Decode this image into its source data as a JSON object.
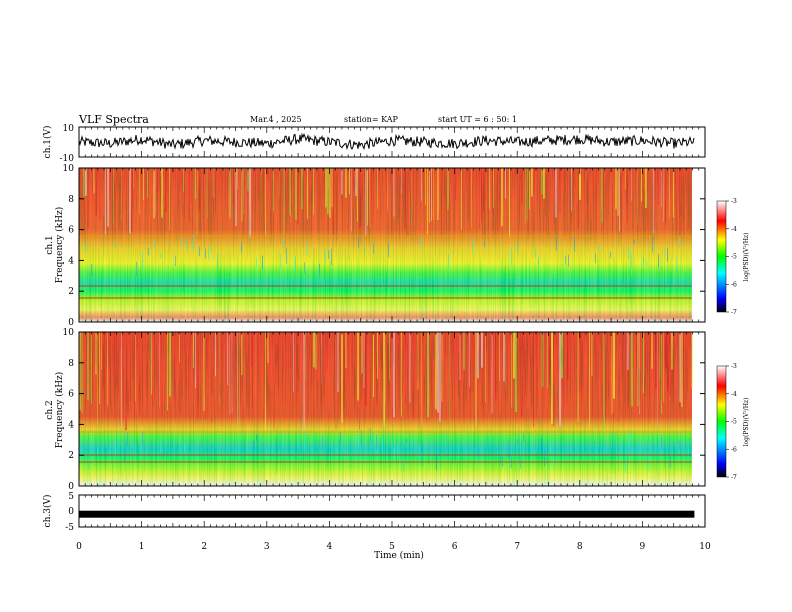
{
  "header": {
    "title": "VLF Spectra",
    "date": "Mar.4 , 2025",
    "station": "station= KAP",
    "start_ut": "start UT =  6 : 50: 1"
  },
  "chart_data": [
    {
      "type": "line",
      "name": "ch1-waveform",
      "ylabel": "ch.1(V)",
      "ylim": [
        -10,
        10
      ],
      "yticks": [
        "10",
        "-10"
      ],
      "x": [
        0.0,
        0.5,
        1.0,
        1.5,
        2.0,
        2.5,
        3.0,
        3.5,
        4.0,
        4.5,
        5.0,
        5.5,
        6.0,
        6.5,
        7.0,
        7.5,
        8.0,
        8.5,
        9.0,
        9.5,
        9.83
      ],
      "values": [
        0,
        -1,
        2,
        -2,
        1,
        0,
        -1,
        2,
        0,
        -2,
        1,
        0,
        -1,
        1,
        0,
        1,
        2,
        0,
        1,
        -1,
        0
      ]
    },
    {
      "type": "heatmap",
      "name": "ch1-spectrogram",
      "ylabel": "ch.1\nFrequency (kHz)",
      "ylim": [
        0,
        10
      ],
      "yticks": [
        "0",
        "2",
        "4",
        "6",
        "8",
        "10"
      ],
      "xlim": [
        0,
        10
      ],
      "data_end_min": 9.83,
      "colorbar": {
        "label": "log(PSD)(V²/Hz)",
        "range": [
          -7,
          -3
        ],
        "ticks": [
          "-3",
          "-4",
          "-5",
          "-6",
          "-7"
        ]
      }
    },
    {
      "type": "heatmap",
      "name": "ch2-spectrogram",
      "ylabel": "ch.2\nFrequency (kHz)",
      "ylim": [
        0,
        10
      ],
      "yticks": [
        "0",
        "2",
        "4",
        "6",
        "8",
        "10"
      ],
      "xlim": [
        0,
        10
      ],
      "data_end_min": 9.83,
      "colorbar": {
        "label": "log(PSD)(V²/Hz)",
        "range": [
          -7,
          -3
        ],
        "ticks": [
          "-3",
          "-4",
          "-5",
          "-6",
          "-7"
        ]
      }
    },
    {
      "type": "line",
      "name": "ch3-waveform",
      "ylabel": "ch.3(V)",
      "ylim": [
        -5,
        5
      ],
      "yticks": [
        "5",
        "0",
        "-5"
      ],
      "x": [
        0,
        9.83
      ],
      "values": [
        -1,
        -1
      ]
    }
  ],
  "x_axis": {
    "label": "Time (min)",
    "ticks": [
      "0",
      "1",
      "2",
      "3",
      "4",
      "5",
      "6",
      "7",
      "8",
      "9",
      "10"
    ],
    "range": [
      0,
      10
    ]
  },
  "colors": {
    "colormap": [
      "#000000",
      "#0000ff",
      "#00ffff",
      "#00ff00",
      "#ffff00",
      "#ff0000",
      "#ffffff"
    ]
  }
}
